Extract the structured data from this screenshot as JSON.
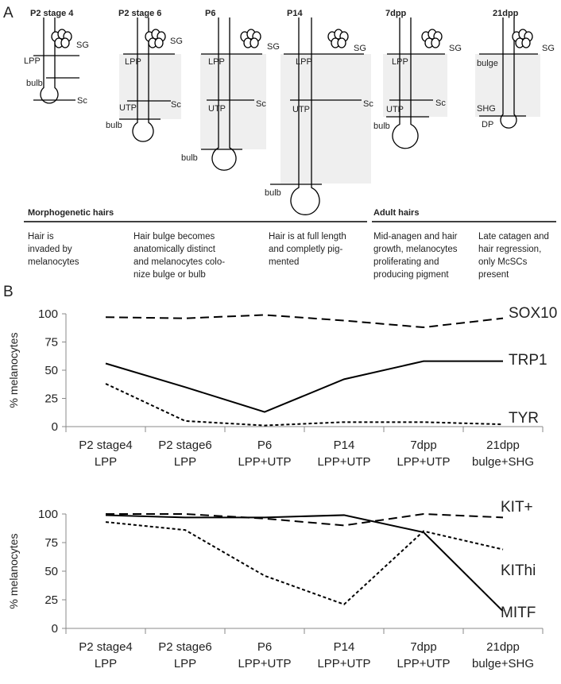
{
  "panel_labels": [
    "A",
    "B"
  ],
  "panel_a": {
    "diagrams": [
      {
        "title": "P2 stage 4",
        "labels": [
          "SG",
          "LPP",
          "bulb",
          "Sc"
        ]
      },
      {
        "title": "P2 stage 6",
        "labels": [
          "SG",
          "LPP",
          "Sc",
          "UTP",
          "bulb"
        ]
      },
      {
        "title": "P6",
        "labels": [
          "SG",
          "LPP",
          "Sc",
          "UTP",
          "bulb"
        ]
      },
      {
        "title": "P14",
        "labels": [
          "SG",
          "LPP",
          "Sc",
          "UTP",
          "bulb"
        ]
      },
      {
        "title": "7dpp",
        "labels": [
          "SG",
          "LPP",
          "Sc",
          "UTP",
          "bulb"
        ]
      },
      {
        "title": "21dpp",
        "labels": [
          "SG",
          "bulge",
          "SHG",
          "DP"
        ]
      }
    ],
    "groups": [
      {
        "title": "Morphogenetic hairs",
        "descriptions": [
          [
            "Hair is",
            "invaded by",
            "melanocytes"
          ],
          [
            "Hair bulge becomes",
            "anatomically distinct",
            "and melanocytes colo-",
            "nize bulge or bulb"
          ],
          [
            "Hair is at full length",
            "and completly pig-",
            "mented"
          ]
        ]
      },
      {
        "title": "Adult hairs",
        "descriptions": [
          [
            "Mid-anagen and hair",
            "growth, melanocytes",
            "proliferating and",
            "producing pigment"
          ],
          [
            "Late catagen and",
            "hair regression,",
            "only McSCs",
            "present"
          ]
        ]
      }
    ]
  },
  "chart_data": [
    {
      "type": "line",
      "y_label": "% melanocytes",
      "categories": [
        [
          "P2 stage4",
          "LPP"
        ],
        [
          "P2 stage6",
          "LPP"
        ],
        [
          "P6",
          "LPP+UTP"
        ],
        [
          "P14",
          "LPP+UTP"
        ],
        [
          "7dpp",
          "LPP+UTP"
        ],
        [
          "21dpp",
          "bulge+SHG"
        ]
      ],
      "ylim": [
        0,
        100
      ],
      "yticks": [
        0,
        25,
        50,
        75,
        100
      ],
      "series": [
        {
          "name": "SOX10",
          "color": "#000000",
          "dash": "dashed",
          "values": [
            97,
            96,
            99,
            94,
            88,
            96
          ]
        },
        {
          "name": "TRP1",
          "color": "#000000",
          "dash": "solid",
          "values": [
            56,
            35,
            13,
            42,
            58,
            58
          ]
        },
        {
          "name": "TYR",
          "color": "#000000",
          "dash": "dotted",
          "values": [
            38,
            5,
            1,
            4,
            4,
            2
          ]
        }
      ]
    },
    {
      "type": "line",
      "y_label": "% melanocytes",
      "categories": [
        [
          "P2 stage4",
          "LPP"
        ],
        [
          "P2 stage6",
          "LPP"
        ],
        [
          "P6",
          "LPP+UTP"
        ],
        [
          "P14",
          "LPP+UTP"
        ],
        [
          "7dpp",
          "LPP+UTP"
        ],
        [
          "21dpp",
          "bulge+SHG"
        ]
      ],
      "ylim": [
        0,
        100
      ],
      "yticks": [
        0,
        25,
        50,
        75,
        100
      ],
      "series": [
        {
          "name": "KIT+",
          "color": "#000000",
          "dash": "dashed",
          "values": [
            100,
            100,
            96,
            90,
            100,
            97
          ]
        },
        {
          "name": "KIThi",
          "color": "#000000",
          "dash": "dotted",
          "values": [
            93,
            86,
            46,
            21,
            85,
            69
          ]
        },
        {
          "name": "MITF",
          "color": "#000000",
          "dash": "solid",
          "values": [
            99,
            97,
            97,
            99,
            84,
            15
          ]
        }
      ]
    }
  ]
}
